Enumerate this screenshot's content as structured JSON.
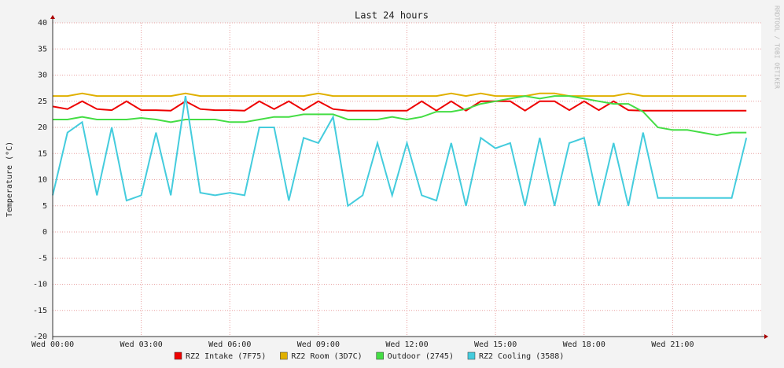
{
  "chart_data": {
    "type": "line",
    "title": "Last 24 hours",
    "y_label": "Temperature (°C)",
    "watermark": "RRDTOOL / TOBI OETIKER",
    "x": [
      0,
      0.5,
      1,
      1.5,
      2,
      2.5,
      3,
      3.5,
      4,
      4.5,
      5,
      5.5,
      6,
      6.5,
      7,
      7.5,
      8,
      8.5,
      9,
      9.5,
      10,
      10.5,
      11,
      11.5,
      12,
      12.5,
      13,
      13.5,
      14,
      14.5,
      15,
      15.5,
      16,
      16.5,
      17,
      17.5,
      18,
      18.5,
      19,
      19.5,
      20,
      20.5,
      21,
      21.5,
      22,
      22.5,
      23,
      23.5
    ],
    "xlim": [
      0,
      24
    ],
    "xticks": [
      {
        "value": 0,
        "label": "Wed 00:00"
      },
      {
        "value": 3,
        "label": "Wed 03:00"
      },
      {
        "value": 6,
        "label": "Wed 06:00"
      },
      {
        "value": 9,
        "label": "Wed 09:00"
      },
      {
        "value": 12,
        "label": "Wed 12:00"
      },
      {
        "value": 15,
        "label": "Wed 15:00"
      },
      {
        "value": 18,
        "label": "Wed 18:00"
      },
      {
        "value": 21,
        "label": "Wed 21:00"
      }
    ],
    "ylim": [
      -20,
      40
    ],
    "yticks": [
      -20,
      -15,
      -10,
      -5,
      0,
      5,
      10,
      15,
      20,
      25,
      30,
      35,
      40
    ],
    "grid": true,
    "series": [
      {
        "name": "RZ2 Intake (7F75)",
        "color": "#ee0000",
        "values": [
          24,
          23.5,
          25,
          23.5,
          23.3,
          25,
          23.3,
          23.3,
          23.2,
          25,
          23.5,
          23.3,
          23.3,
          23.2,
          25,
          23.5,
          25,
          23.3,
          25,
          23.5,
          23.2,
          23.2,
          23.2,
          23.2,
          23.2,
          25,
          23.2,
          25,
          23.2,
          25,
          25,
          25,
          23.2,
          25,
          25,
          23.3,
          25,
          23.3,
          25,
          23.3,
          23.2,
          23.2,
          23.2,
          23.2,
          23.2,
          23.2,
          23.2,
          23.2
        ]
      },
      {
        "name": "RZ2 Room (3D7C)",
        "color": "#e0b000",
        "values": [
          26,
          26,
          26.5,
          26,
          26,
          26,
          26,
          26,
          26,
          26.5,
          26,
          26,
          26,
          26,
          26,
          26,
          26,
          26,
          26.5,
          26,
          26,
          26,
          26,
          26,
          26,
          26,
          26,
          26.5,
          26,
          26.5,
          26,
          26,
          26,
          26.5,
          26.5,
          26,
          26,
          26,
          26,
          26.5,
          26,
          26,
          26,
          26,
          26,
          26,
          26,
          26
        ]
      },
      {
        "name": "Outdoor (2745)",
        "color": "#44dd44",
        "values": [
          21.5,
          21.5,
          22,
          21.5,
          21.5,
          21.5,
          21.8,
          21.5,
          21,
          21.5,
          21.5,
          21.5,
          21,
          21,
          21.5,
          22,
          22,
          22.5,
          22.5,
          22.5,
          21.5,
          21.5,
          21.5,
          22,
          21.5,
          22,
          23,
          23,
          23.5,
          24.5,
          25,
          25.5,
          26,
          25.5,
          26,
          26,
          25.5,
          25,
          24.5,
          24.5,
          23,
          20,
          19.5,
          19.5,
          19,
          18.5,
          19,
          19
        ]
      },
      {
        "name": "RZ2 Cooling (3588)",
        "color": "#44ccdd",
        "values": [
          7,
          19,
          21,
          7,
          20,
          6,
          7,
          19,
          7,
          26,
          7.5,
          7,
          7.5,
          7,
          20,
          20,
          6,
          18,
          17,
          22,
          5,
          7,
          17,
          7,
          17,
          7,
          6,
          17,
          5,
          18,
          16,
          17,
          5,
          18,
          5,
          17,
          18,
          5,
          17,
          5,
          19,
          6.5,
          6.5,
          6.5,
          6.5,
          6.5,
          6.5,
          18
        ]
      }
    ]
  }
}
